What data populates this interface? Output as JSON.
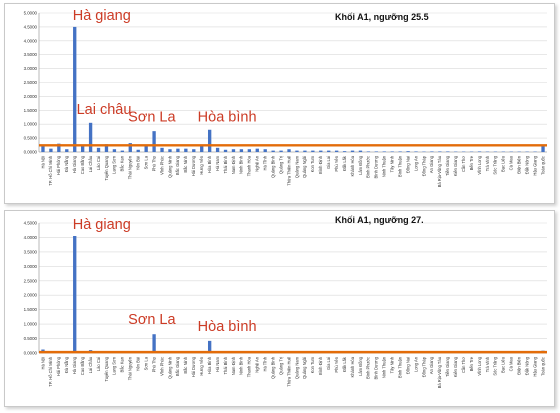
{
  "provinces": [
    "Hà Nội",
    "TP. Hồ Chí Minh",
    "Hải Phòng",
    "Đà Nẵng",
    "Hà Giang",
    "Cao Bằng",
    "Lai Châu",
    "Lào Cai",
    "Tuyên Quang",
    "Lạng Sơn",
    "Bắc Kạn",
    "Thái Nguyên",
    "Yên Bái",
    "Sơn La",
    "Phú Thọ",
    "Vĩnh Phúc",
    "Quảng Ninh",
    "Bắc Giang",
    "Bắc Ninh",
    "Hải Dương",
    "Hưng Yên",
    "Hòa Bình",
    "Hà Nam",
    "Thái Bình",
    "Nam Định",
    "Ninh Bình",
    "Thanh Hóa",
    "Nghệ An",
    "Hà Tĩnh",
    "Quảng Bình",
    "Quảng Trị",
    "Thừa Thiên Huế",
    "Quảng Nam",
    "Quảng Ngãi",
    "Kon Tum",
    "Bình Định",
    "Gia Lai",
    "Phú Yên",
    "Đắk Lắk",
    "Khánh Hòa",
    "Lâm Đồng",
    "Bình Phước",
    "Bình Dương",
    "Ninh Thuận",
    "Tây Ninh",
    "Bình Thuận",
    "Đồng Nai",
    "Long An",
    "Đồng Tháp",
    "An Giang",
    "Bà Rịa-Vũng Tàu",
    "Tiền Giang",
    "Kiên Giang",
    "Cần Thơ",
    "Bến Tre",
    "Vĩnh Long",
    "Trà Vinh",
    "Sóc Trăng",
    "Bạc Liêu",
    "Cà Mau",
    "Điện Biên",
    "Đắk Nông",
    "Hậu Giang",
    "Toàn quốc"
  ],
  "colors": {
    "bar": "#4472c4",
    "reference_line": "#e36c09",
    "annotation": "#cc3b25",
    "grid": "#d9d9d9"
  },
  "chart_data": [
    {
      "type": "bar",
      "title": "Khối A1, ngưỡng 25.5",
      "ylim": [
        0,
        5.0
      ],
      "ytick_labels": [
        "0.0000",
        "0.5000",
        "1.0000",
        "1.5000",
        "2.0000",
        "2.5000",
        "3.0000",
        "3.5000",
        "4.0000",
        "4.5000",
        "5.0000"
      ],
      "reference_value": 0.24,
      "values": [
        0.25,
        0.12,
        0.3,
        0.1,
        4.5,
        0.2,
        1.05,
        0.15,
        0.28,
        0.1,
        0.05,
        0.32,
        0.08,
        0.25,
        0.75,
        0.15,
        0.1,
        0.12,
        0.12,
        0.1,
        0.2,
        0.8,
        0.15,
        0.08,
        0.1,
        0.1,
        0.1,
        0.12,
        0.1,
        0.05,
        0.05,
        0.1,
        0.05,
        0.05,
        0.05,
        0.05,
        0.05,
        0.05,
        0.03,
        0.05,
        0.05,
        0.02,
        0.02,
        0.02,
        0.02,
        0.02,
        0.03,
        0.02,
        0.01,
        0.02,
        0.02,
        0.02,
        0.01,
        0.01,
        0.01,
        0.02,
        0.01,
        0.01,
        0.01,
        0.01,
        0.01,
        0.01,
        0.01,
        0.22
      ],
      "annotations": [
        {
          "text": "Hà giang",
          "category": "Hà Giang",
          "value": 4.6
        },
        {
          "text": "Lai châu",
          "category": "Lai Châu",
          "value": 1.15
        },
        {
          "text": "Sơn La",
          "category": "Sơn La",
          "value": 0.88
        },
        {
          "text": "Hòa bình",
          "category": "Hòa Bình",
          "value": 0.88
        }
      ]
    },
    {
      "type": "bar",
      "title": "Khối A1, ngưỡng 27.",
      "ylim": [
        0,
        4.5
      ],
      "ytick_labels": [
        "0.0000",
        "0.5000",
        "1.0000",
        "1.5000",
        "2.0000",
        "2.5000",
        "3.0000",
        "3.5000",
        "4.0000",
        "4.5000"
      ],
      "reference_value": 0.03,
      "values": [
        0.12,
        0.02,
        0.05,
        0.02,
        4.05,
        0.05,
        0.1,
        0.02,
        0.05,
        0.02,
        0.0,
        0.05,
        0.0,
        0.03,
        0.65,
        0.05,
        0.02,
        0.03,
        0.02,
        0.02,
        0.05,
        0.42,
        0.02,
        0.01,
        0.02,
        0.01,
        0.01,
        0.02,
        0.01,
        0.0,
        0.0,
        0.01,
        0.0,
        0.0,
        0.0,
        0.0,
        0.0,
        0.0,
        0.0,
        0.0,
        0.0,
        0.0,
        0.0,
        0.0,
        0.0,
        0.0,
        0.0,
        0.0,
        0.0,
        0.0,
        0.0,
        0.0,
        0.0,
        0.0,
        0.0,
        0.0,
        0.0,
        0.0,
        0.0,
        0.0,
        0.0,
        0.0,
        0.0,
        0.08
      ],
      "annotations": [
        {
          "text": "Hà giang",
          "category": "Hà Giang",
          "value": 4.15
        },
        {
          "text": "Sơn La",
          "category": "Sơn La",
          "value": 0.8
        },
        {
          "text": "Hòa bình",
          "category": "Hòa Bình",
          "value": 0.55
        }
      ]
    }
  ]
}
